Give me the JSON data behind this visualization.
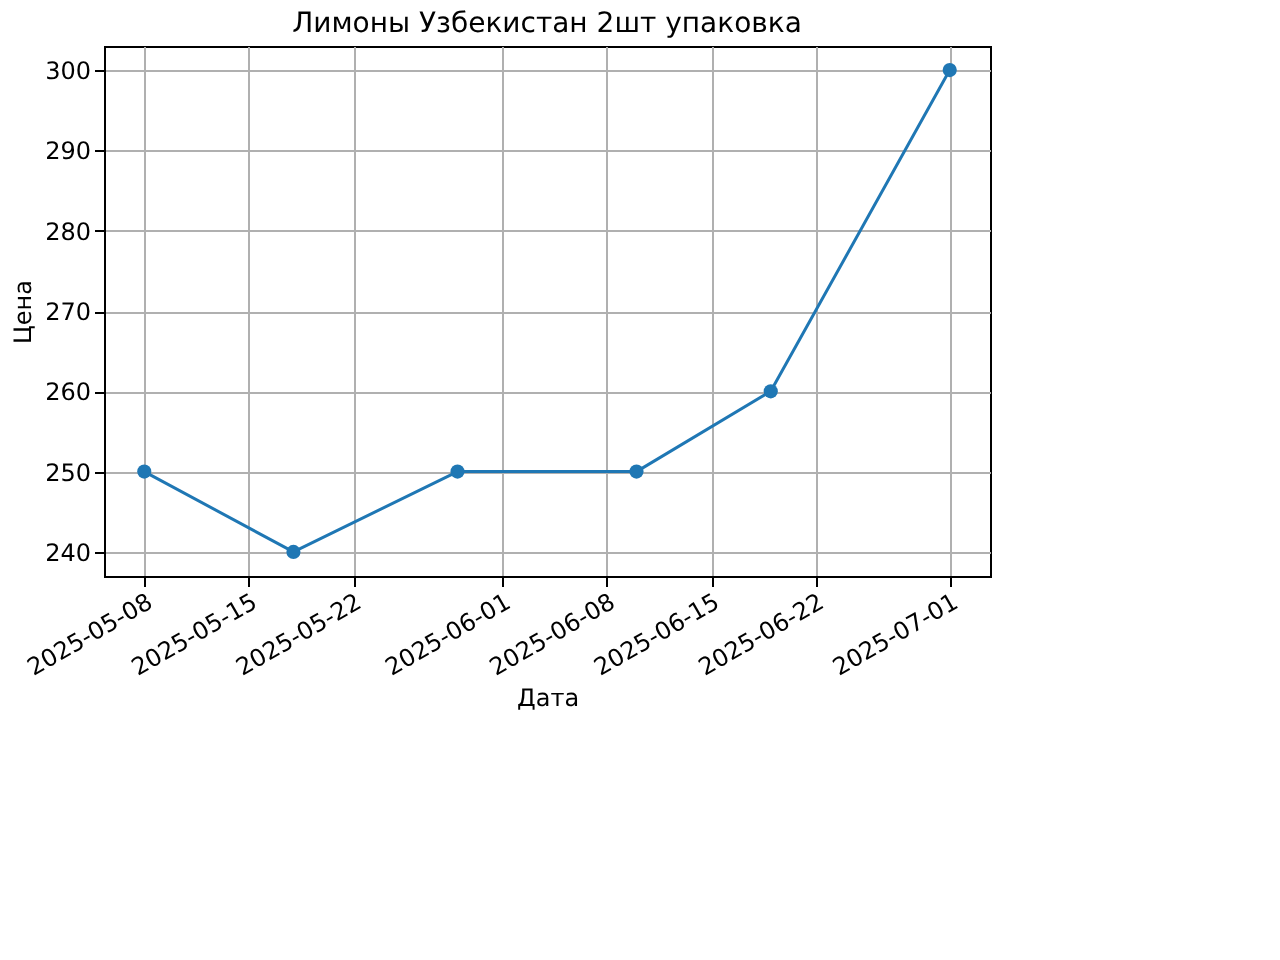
{
  "chart_data": {
    "type": "line",
    "title": "Лимоны Узбекистан 2шт упаковка",
    "xlabel": "Дата",
    "ylabel": "Цена",
    "x": [
      "2025-05-08",
      "2025-05-18",
      "2025-05-29",
      "2025-06-10",
      "2025-06-19",
      "2025-07-01"
    ],
    "series": [
      {
        "color": "#1f77b4",
        "values": [
          250,
          240,
          250,
          250,
          260,
          300
        ]
      }
    ],
    "xlim": [
      "2025-05-05T07:12",
      "2025-07-03T16:48"
    ],
    "xticks": [
      "2025-05-08",
      "2025-05-15",
      "2025-05-22",
      "2025-06-01",
      "2025-06-08",
      "2025-06-15",
      "2025-06-22",
      "2025-07-01"
    ],
    "ylim": [
      237,
      303
    ],
    "yticks": [
      240,
      250,
      260,
      270,
      280,
      290,
      300
    ],
    "grid": true,
    "marker": "circle",
    "line_style": "solid"
  }
}
